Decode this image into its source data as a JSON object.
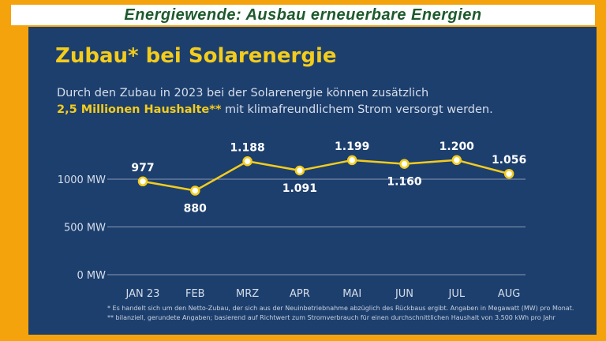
{
  "banner": {
    "title": "Energiewende: Ausbau erneuerbare Energien"
  },
  "panel": {
    "title": "Zubau* bei Solarenergie",
    "subtitle_line1": "Durch den Zubau in 2023 bei der Solarenergie können zusätzlich",
    "subtitle_highlight": "2,5 Millionen Haushalte**",
    "subtitle_line2_rest": " mit klimafreundlichem Strom versorgt werden.",
    "footnote1": "* Es handelt sich um den Netto-Zubau, der sich aus der Neuinbetriebnahme abzüglich des Rückbaus ergibt. Angaben in Megawatt (MW) pro Monat.",
    "footnote2": "** bilanziell, gerundete Angaben; basierend auf Richtwert zum Stromverbrauch für einen durchschnittlichen Haushalt von 3.500 kWh pro Jahr"
  },
  "colors": {
    "background_frame": "#f5a30c",
    "panel": "#1d3f6e",
    "accent": "#f3cc1c",
    "banner_text": "#1d5a2c",
    "text_light": "#ffffff",
    "gridline": "#8a9ab3"
  },
  "chart_data": {
    "type": "line",
    "categories": [
      "JAN 23",
      "FEB",
      "MRZ",
      "APR",
      "MAI",
      "JUN",
      "JUL",
      "AUG"
    ],
    "values": [
      977,
      880,
      1188,
      1091,
      1199,
      1160,
      1200,
      1056
    ],
    "data_labels": [
      "977",
      "880",
      "1.188",
      "1.091",
      "1.199",
      "1.160",
      "1.200",
      "1.056"
    ],
    "y_ticks": [
      {
        "value": 0,
        "label": "0 MW"
      },
      {
        "value": 500,
        "label": "500 MW"
      },
      {
        "value": 1000,
        "label": "1000 MW"
      }
    ],
    "ylim": [
      0,
      1000
    ],
    "grid": true,
    "legend": "none"
  }
}
